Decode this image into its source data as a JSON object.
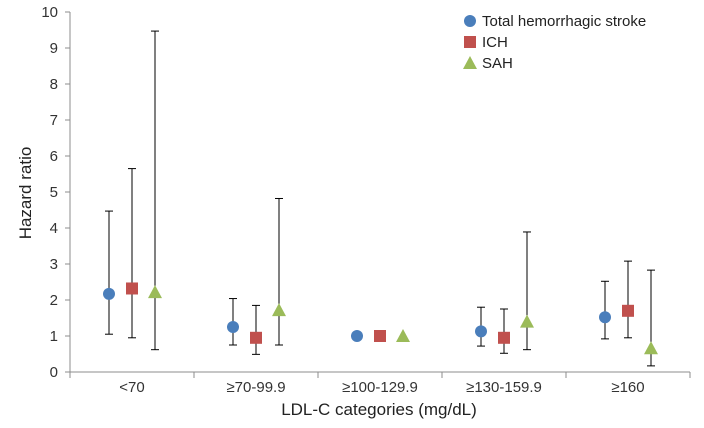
{
  "chart_data": {
    "type": "scatter",
    "title": "",
    "xlabel": "LDL-C categories (mg/dL)",
    "ylabel": "Hazard  ratio",
    "ylim": [
      0,
      10
    ],
    "yticks": [
      "0",
      "1",
      "2",
      "3",
      "4",
      "5",
      "6",
      "7",
      "8",
      "9",
      "10"
    ],
    "categories": [
      "<70",
      "≥70-99.9",
      "≥100-129.9",
      "≥130-159.9",
      "≥160"
    ],
    "grid": false,
    "legend_position": "top-right",
    "series": [
      {
        "name": "Total hemorrhagic stroke",
        "marker": "circle",
        "color": "#4a7ebb",
        "values": [
          2.17,
          1.25,
          1.0,
          1.13,
          1.52
        ],
        "lower": [
          1.05,
          0.75,
          null,
          0.72,
          0.92
        ],
        "upper": [
          4.47,
          2.04,
          null,
          1.8,
          2.52
        ]
      },
      {
        "name": "ICH",
        "marker": "square",
        "color": "#c0504d",
        "values": [
          2.32,
          0.95,
          1.0,
          0.95,
          1.7
        ],
        "lower": [
          0.95,
          0.49,
          null,
          0.52,
          0.95
        ],
        "upper": [
          5.65,
          1.85,
          null,
          1.75,
          3.08
        ]
      },
      {
        "name": "SAH",
        "marker": "triangle",
        "color": "#9bbb59",
        "values": [
          2.22,
          1.72,
          1.0,
          1.4,
          0.66
        ],
        "lower": [
          0.62,
          0.75,
          null,
          0.62,
          0.17
        ],
        "upper": [
          9.47,
          4.82,
          null,
          3.89,
          2.83
        ]
      }
    ]
  }
}
